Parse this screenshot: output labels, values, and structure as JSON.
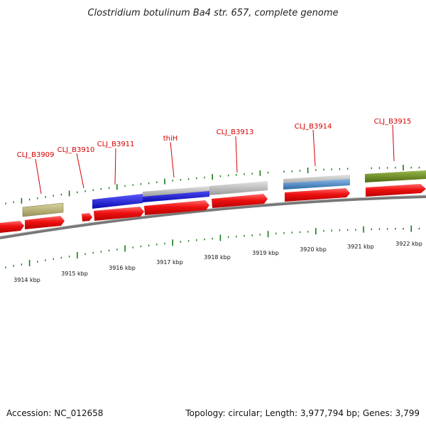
{
  "title": "Clostridium botulinum Ba4 str. 657, complete genome",
  "footer": {
    "accession": "Accession: NC_012658",
    "summary": "Topology: circular; Length: 3,977,794 bp; Genes: 3,799"
  },
  "gene_labels": [
    "CLJ_B3909",
    "CLJ_B3910",
    "CLJ_B3911",
    "thiH",
    "CLJ_B3913",
    "CLJ_B3914",
    "CLJ_B3915"
  ],
  "kbp_labels": [
    "3914 kbp",
    "3915 kbp",
    "3916 kbp",
    "3917 kbp",
    "3918 kbp",
    "3919 kbp",
    "3920 kbp",
    "3921 kbp",
    "3922 kbp"
  ],
  "colors": {
    "cds": "#ee1111",
    "khaki": "#b5ad6a",
    "blue": "#1111dd",
    "grey": "#b8b8b8",
    "steel": "#4a86c4",
    "olive": "#6b8a1e",
    "tick": "#1a7a1a",
    "backbone": "#888888",
    "label": "#d40000"
  }
}
